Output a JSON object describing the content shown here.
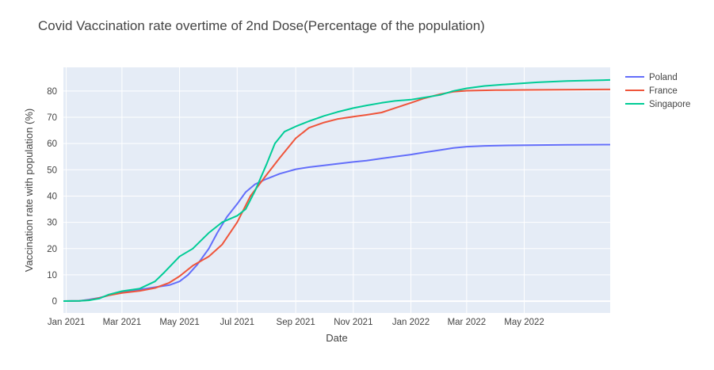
{
  "chart_data": {
    "type": "line",
    "title": "Covid Vaccination rate overtime of 2nd Dose(Percentage of the population)",
    "xlabel": "Date",
    "ylabel": "Vaccination rate with population (%)",
    "xlim": [
      "2020-12-29",
      "2022-07-31"
    ],
    "ylim": [
      -4.5,
      89
    ],
    "x_ticks": [
      "2021-01-01",
      "2021-03-01",
      "2021-05-01",
      "2021-07-01",
      "2021-09-01",
      "2021-11-01",
      "2022-01-01",
      "2022-03-01",
      "2022-05-01"
    ],
    "x_tick_labels": [
      "Jan 2021",
      "Mar 2021",
      "May 2021",
      "Jul 2021",
      "Sep 2021",
      "Nov 2021",
      "Jan 2022",
      "Mar 2022",
      "May 2022"
    ],
    "y_ticks": [
      0,
      10,
      20,
      30,
      40,
      50,
      60,
      70,
      80
    ],
    "grid": true,
    "legend_position": "top-right",
    "colors": {
      "plot_bg": "#E5ECF6",
      "grid": "#ffffff"
    },
    "series": [
      {
        "name": "Poland",
        "color": "#636EFA",
        "points": [
          [
            "2020-12-27",
            0
          ],
          [
            "2021-01-15",
            0.1
          ],
          [
            "2021-01-25",
            0.6
          ],
          [
            "2021-02-05",
            1.3
          ],
          [
            "2021-02-15",
            2.2
          ],
          [
            "2021-03-01",
            3.3
          ],
          [
            "2021-03-20",
            4.4
          ],
          [
            "2021-04-05",
            5.3
          ],
          [
            "2021-04-20",
            6.1
          ],
          [
            "2021-05-01",
            7.5
          ],
          [
            "2021-05-10",
            10
          ],
          [
            "2021-05-20",
            14
          ],
          [
            "2021-06-01",
            20
          ],
          [
            "2021-06-10",
            26
          ],
          [
            "2021-06-20",
            32
          ],
          [
            "2021-07-01",
            37
          ],
          [
            "2021-07-10",
            41.5
          ],
          [
            "2021-07-20",
            44.5
          ],
          [
            "2021-08-01",
            46.5
          ],
          [
            "2021-08-15",
            48.5
          ],
          [
            "2021-09-01",
            50.2
          ],
          [
            "2021-09-15",
            51
          ],
          [
            "2021-10-01",
            51.7
          ],
          [
            "2021-10-15",
            52.3
          ],
          [
            "2021-11-01",
            53
          ],
          [
            "2021-11-15",
            53.5
          ],
          [
            "2021-12-01",
            54.3
          ],
          [
            "2021-12-15",
            55
          ],
          [
            "2022-01-01",
            55.8
          ],
          [
            "2022-01-15",
            56.6
          ],
          [
            "2022-02-01",
            57.5
          ],
          [
            "2022-02-15",
            58.3
          ],
          [
            "2022-03-01",
            58.8
          ],
          [
            "2022-03-20",
            59.1
          ],
          [
            "2022-04-15",
            59.3
          ],
          [
            "2022-05-15",
            59.4
          ],
          [
            "2022-06-15",
            59.5
          ],
          [
            "2022-07-31",
            59.6
          ]
        ]
      },
      {
        "name": "France",
        "color": "#EF553B",
        "points": [
          [
            "2020-12-27",
            0
          ],
          [
            "2021-01-15",
            0.1
          ],
          [
            "2021-01-25",
            0.4
          ],
          [
            "2021-02-05",
            1.2
          ],
          [
            "2021-02-15",
            2.2
          ],
          [
            "2021-03-01",
            3.1
          ],
          [
            "2021-03-20",
            3.9
          ],
          [
            "2021-04-05",
            5
          ],
          [
            "2021-04-20",
            7
          ],
          [
            "2021-05-01",
            9.5
          ],
          [
            "2021-05-15",
            13.5
          ],
          [
            "2021-06-01",
            17
          ],
          [
            "2021-06-15",
            21.5
          ],
          [
            "2021-07-01",
            30
          ],
          [
            "2021-07-15",
            40
          ],
          [
            "2021-08-01",
            48
          ],
          [
            "2021-08-15",
            54.5
          ],
          [
            "2021-09-01",
            62
          ],
          [
            "2021-09-15",
            66
          ],
          [
            "2021-10-01",
            68
          ],
          [
            "2021-10-15",
            69.3
          ],
          [
            "2021-11-01",
            70.2
          ],
          [
            "2021-11-15",
            70.9
          ],
          [
            "2021-12-01",
            71.8
          ],
          [
            "2021-12-15",
            73.5
          ],
          [
            "2022-01-01",
            75.5
          ],
          [
            "2022-01-15",
            77.2
          ],
          [
            "2022-02-01",
            78.8
          ],
          [
            "2022-02-15",
            79.7
          ],
          [
            "2022-03-01",
            80.1
          ],
          [
            "2022-04-01",
            80.3
          ],
          [
            "2022-05-01",
            80.4
          ],
          [
            "2022-06-01",
            80.5
          ],
          [
            "2022-07-31",
            80.6
          ]
        ]
      },
      {
        "name": "Singapore",
        "color": "#00CC96",
        "points": [
          [
            "2020-12-27",
            0
          ],
          [
            "2021-01-15",
            0.1
          ],
          [
            "2021-01-25",
            0.3
          ],
          [
            "2021-02-05",
            1
          ],
          [
            "2021-02-15",
            2.5
          ],
          [
            "2021-03-01",
            3.8
          ],
          [
            "2021-03-20",
            4.8
          ],
          [
            "2021-04-05",
            7.5
          ],
          [
            "2021-04-15",
            11
          ],
          [
            "2021-05-01",
            17
          ],
          [
            "2021-05-15",
            20
          ],
          [
            "2021-06-01",
            26
          ],
          [
            "2021-06-15",
            30
          ],
          [
            "2021-07-01",
            32.5
          ],
          [
            "2021-07-10",
            35
          ],
          [
            "2021-07-20",
            42
          ],
          [
            "2021-08-01",
            52
          ],
          [
            "2021-08-10",
            60
          ],
          [
            "2021-08-20",
            64.5
          ],
          [
            "2021-09-01",
            66.5
          ],
          [
            "2021-09-15",
            68.5
          ],
          [
            "2021-10-01",
            70.5
          ],
          [
            "2021-10-15",
            72
          ],
          [
            "2021-11-01",
            73.5
          ],
          [
            "2021-11-15",
            74.5
          ],
          [
            "2021-12-01",
            75.5
          ],
          [
            "2021-12-15",
            76.2
          ],
          [
            "2022-01-01",
            76.7
          ],
          [
            "2022-01-15",
            77.5
          ],
          [
            "2022-02-01",
            78.5
          ],
          [
            "2022-02-15",
            80
          ],
          [
            "2022-03-01",
            81
          ],
          [
            "2022-03-20",
            81.9
          ],
          [
            "2022-04-15",
            82.6
          ],
          [
            "2022-05-15",
            83.3
          ],
          [
            "2022-06-15",
            83.8
          ],
          [
            "2022-07-31",
            84.2
          ]
        ]
      }
    ]
  }
}
